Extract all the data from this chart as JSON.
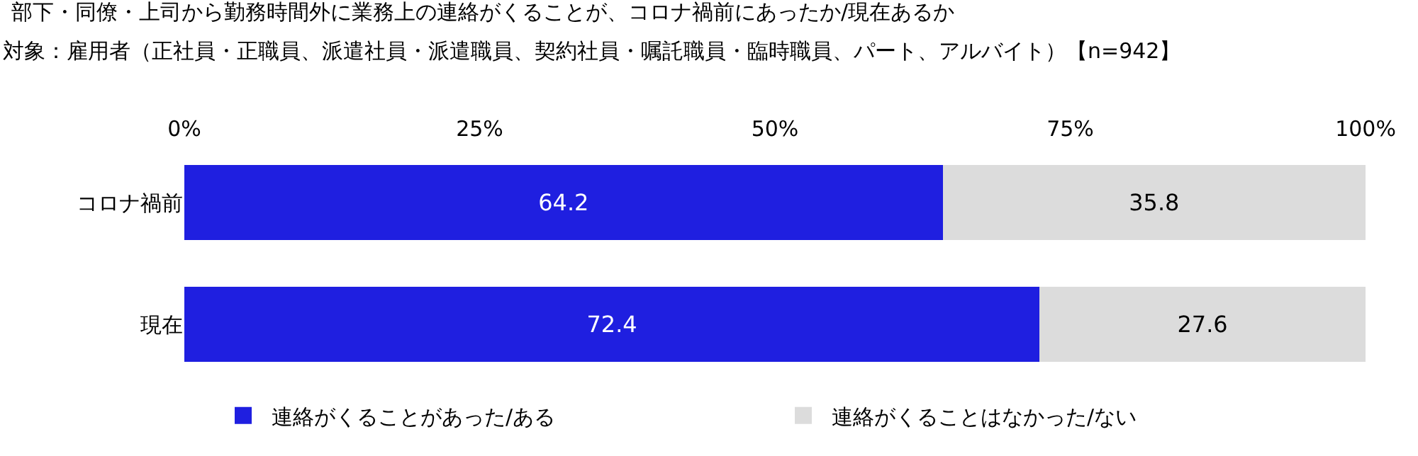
{
  "chart_data": {
    "type": "bar",
    "orientation": "horizontal",
    "stacked": true,
    "title": "部下・同僚・上司から勤務時間外に業務上の連絡がくることが、コロナ禍前にあったか/現在あるか",
    "subtitle": "対象：雇用者（正社員・正職員、派遣社員・派遣職員、契約社員・嘱託職員・臨時職員、パート、アルバイト）【n=942】",
    "categories": [
      "コロナ禍前",
      "現在"
    ],
    "series": [
      {
        "name": "連絡がくることがあった/ある",
        "color": "#1f1fe0",
        "values": [
          64.2,
          72.4
        ]
      },
      {
        "name": "連絡がくることはなかった/ない",
        "color": "#dcdcdc",
        "values": [
          35.8,
          27.6
        ]
      }
    ],
    "xlim": [
      0,
      100
    ],
    "xticks": [
      {
        "value": 0,
        "label": "0%"
      },
      {
        "value": 25,
        "label": "25%"
      },
      {
        "value": 50,
        "label": "50%"
      },
      {
        "value": 75,
        "label": "75%"
      },
      {
        "value": 100,
        "label": "100%"
      }
    ],
    "data_labels": true,
    "legend": "bottom",
    "grid": false
  }
}
